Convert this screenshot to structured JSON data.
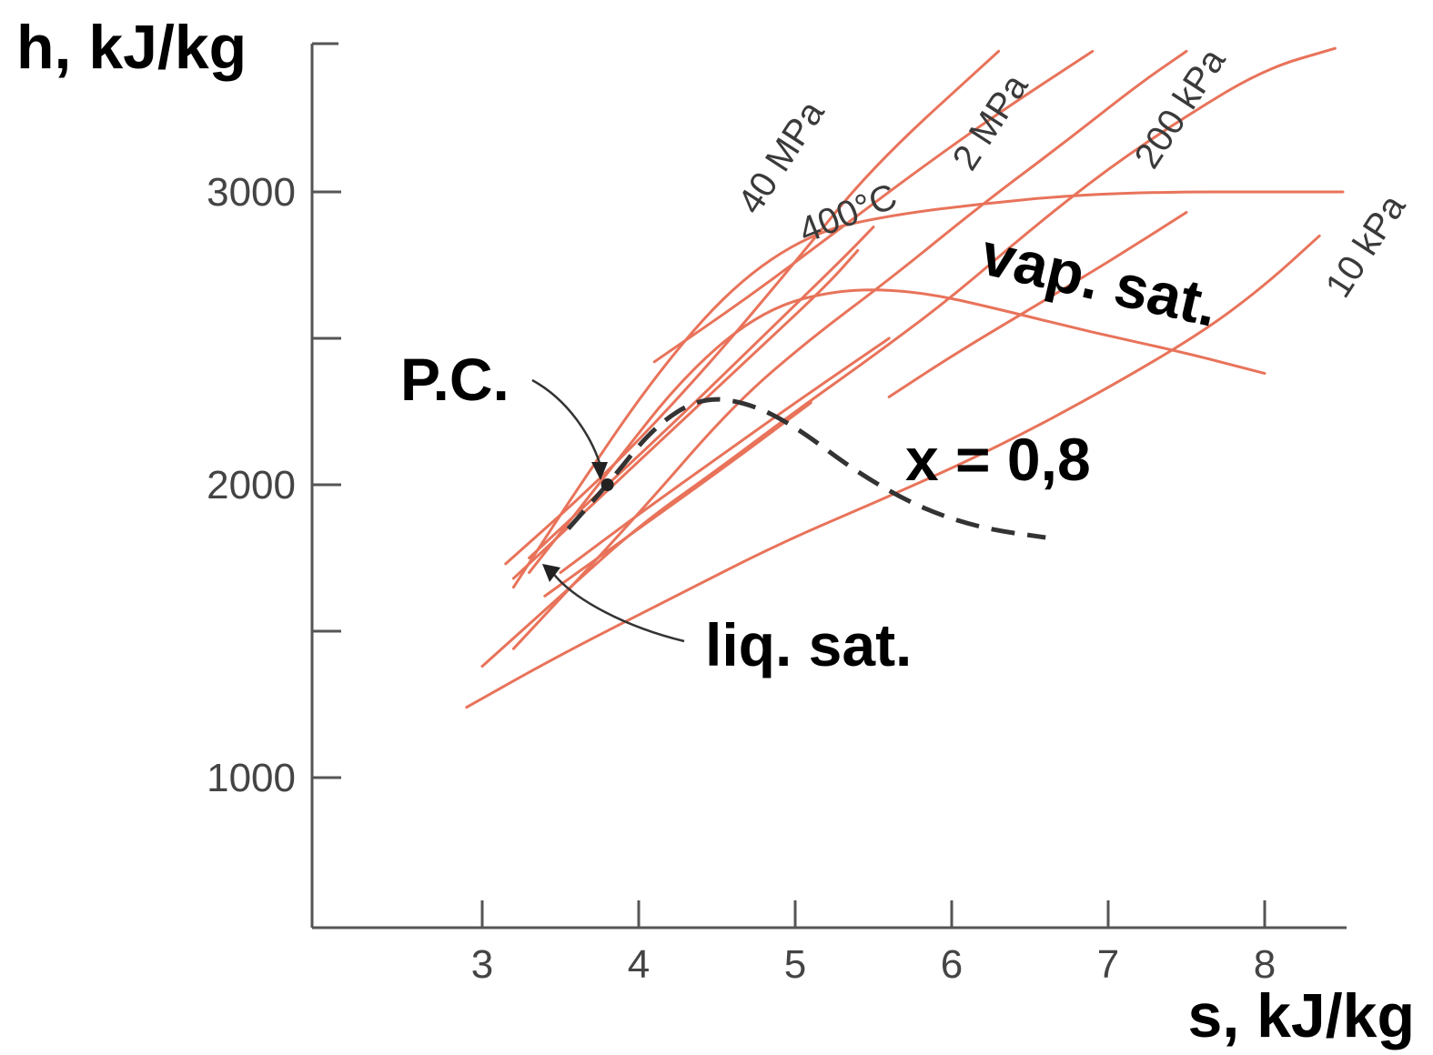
{
  "chart_data": {
    "type": "line",
    "xlabel": "s, kJ/kg",
    "ylabel": "h, kJ/kg",
    "xlim": [
      1.9,
      8.5
    ],
    "ylim": [
      500,
      3500
    ],
    "x_ticks": [
      3,
      4,
      5,
      6,
      7,
      8
    ],
    "y_ticks": [
      1000,
      1500,
      2000,
      2500,
      3000
    ],
    "y_tick_labels": [
      "1000",
      "",
      "2000",
      "",
      "3000"
    ],
    "grid": false,
    "colors": {
      "curve": "#e8735a",
      "axis": "#555555",
      "annotation": "#333333"
    },
    "series": [
      {
        "name": "40 MPa",
        "kind": "isobar",
        "x": [
          3.15,
          3.8,
          4.4,
          5.0,
          5.5,
          6.3
        ],
        "y": [
          1730,
          2040,
          2380,
          2760,
          3090,
          3480
        ]
      },
      {
        "name": "2 MPa",
        "kind": "isobar",
        "x": [
          3.2,
          4.0,
          4.6,
          5.1,
          5.6,
          6.2,
          6.7,
          7.2,
          7.5
        ],
        "y": [
          1440,
          1900,
          2270,
          2500,
          2700,
          2960,
          3160,
          3370,
          3480
        ]
      },
      {
        "name": "200 kPa",
        "kind": "isobar",
        "x": [
          3.0,
          3.5,
          4.0,
          4.5,
          5.0,
          5.5,
          6.0,
          6.5,
          7.0,
          7.5,
          8.0,
          8.45
        ],
        "y": [
          1380,
          1620,
          1860,
          2050,
          2250,
          2440,
          2640,
          2870,
          3080,
          3260,
          3420,
          3490
        ]
      },
      {
        "name": "10 kPa",
        "kind": "isobar",
        "x": [
          2.9,
          3.5,
          4.2,
          4.9,
          5.6,
          6.3,
          7.0,
          7.6,
          8.0,
          8.35
        ],
        "y": [
          1240,
          1420,
          1610,
          1800,
          1960,
          2130,
          2330,
          2520,
          2680,
          2850
        ]
      },
      {
        "name": "400°C",
        "kind": "isotherm",
        "x": [
          3.2,
          3.6,
          4.1,
          4.6,
          5.1,
          5.6,
          6.2,
          6.8,
          7.4,
          8.0,
          8.5
        ],
        "y": [
          1650,
          1980,
          2370,
          2680,
          2860,
          2920,
          2960,
          2990,
          3000,
          3000,
          3000
        ]
      },
      {
        "name": "",
        "kind": "isotherm",
        "x": [
          3.3,
          3.8,
          4.3,
          4.8,
          5.3,
          5.8,
          6.3,
          6.9,
          7.5,
          8.0
        ],
        "y": [
          1700,
          2040,
          2380,
          2600,
          2670,
          2660,
          2600,
          2520,
          2450,
          2380
        ]
      },
      {
        "name": "",
        "kind": "isobar",
        "x": [
          4.1,
          4.7,
          5.3,
          5.8,
          6.3,
          6.9
        ],
        "y": [
          2420,
          2640,
          2880,
          3080,
          3270,
          3480
        ]
      },
      {
        "name": "",
        "kind": "isobar",
        "x": [
          5.6,
          6.0,
          6.5,
          7.0,
          7.5
        ],
        "y": [
          2300,
          2440,
          2600,
          2760,
          2930
        ]
      },
      {
        "name": "",
        "kind": "isobar",
        "x": [
          3.2,
          3.7,
          4.2,
          4.7,
          5.2,
          5.4
        ],
        "y": [
          1680,
          1930,
          2180,
          2430,
          2680,
          2800
        ]
      },
      {
        "name": "",
        "kind": "isobar",
        "x": [
          3.3,
          3.8,
          4.3,
          4.8,
          5.3,
          5.5
        ],
        "y": [
          1750,
          2000,
          2250,
          2510,
          2770,
          2880
        ]
      },
      {
        "name": "",
        "kind": "isobar",
        "x": [
          3.5,
          4.0,
          4.5,
          5.0,
          5.6
        ],
        "y": [
          1700,
          1900,
          2090,
          2280,
          2500
        ]
      },
      {
        "name": "",
        "kind": "isobar",
        "x": [
          3.4,
          4.0,
          4.6,
          5.1
        ],
        "y": [
          1620,
          1850,
          2080,
          2280
        ]
      },
      {
        "name": "x = 0,8",
        "kind": "quality",
        "dashed": true,
        "x": [
          3.55,
          3.8,
          4.1,
          4.4,
          4.7,
          5.0,
          5.4,
          5.8,
          6.2,
          6.6
        ],
        "y": [
          1850,
          2000,
          2200,
          2300,
          2280,
          2200,
          2040,
          1920,
          1850,
          1820
        ]
      }
    ],
    "annotations": [
      {
        "text": "P.C.",
        "x": 2.55,
        "y": 2320
      },
      {
        "text": "vap. sat.",
        "x": 6.2,
        "y": 2660
      },
      {
        "text": "x = 0,8",
        "x": 5.7,
        "y": 2080
      },
      {
        "text": "liq. sat.",
        "x": 5.4,
        "y": 1420
      }
    ],
    "critical_point": {
      "x": 3.8,
      "y": 2000
    }
  }
}
